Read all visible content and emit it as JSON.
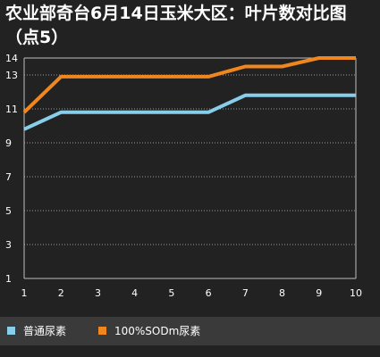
{
  "title": "农业部奇台6月14日玉米大区：叶片数对比图（点5）",
  "colors": {
    "background": "#222222",
    "legend_background": "#3a3a3a",
    "series_1": "#87ceeb",
    "series_2": "#f0871e",
    "grid": "#9a9a9a"
  },
  "chart_data": {
    "type": "line",
    "title": "农业部奇台6月14日玉米大区：叶片数对比图（点5）",
    "xlabel": "",
    "ylabel": "",
    "x": [
      1,
      2,
      3,
      4,
      5,
      6,
      7,
      8,
      9,
      10
    ],
    "yticks": [
      1,
      3,
      5,
      7,
      9,
      11,
      13,
      14
    ],
    "xlim": [
      1,
      10
    ],
    "ylim": [
      1,
      14
    ],
    "grid": "horizontal dotted",
    "legend_position": "bottom",
    "series": [
      {
        "name": "普通尿素",
        "color": "#87ceeb",
        "values": [
          9.8,
          10.8,
          10.8,
          10.8,
          10.8,
          10.8,
          11.8,
          11.8,
          11.8,
          11.8
        ]
      },
      {
        "name": "100%SODm尿素",
        "color": "#f0871e",
        "values": [
          10.8,
          12.9,
          12.9,
          12.9,
          12.9,
          12.9,
          13.5,
          13.5,
          14.0,
          14.0
        ]
      }
    ]
  }
}
